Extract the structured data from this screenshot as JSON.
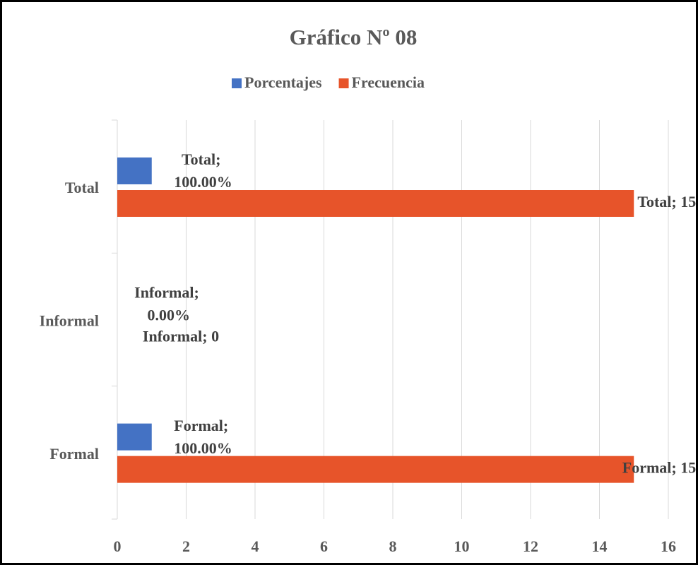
{
  "chart_data": {
    "type": "bar",
    "orientation": "horizontal",
    "title": "Gráfico Nº 08",
    "categories": [
      "Formal",
      "Informal",
      "Total"
    ],
    "series": [
      {
        "name": "Porcentajes",
        "color": "#4472c4",
        "values": [
          1,
          0,
          1
        ],
        "value_labels": [
          "Formal; 100.00%",
          "Informal; 0.00%",
          "Total; 100.00%"
        ]
      },
      {
        "name": "Frecuencia",
        "color": "#e7542a",
        "values": [
          15,
          0,
          15
        ],
        "value_labels": [
          "Formal; 15",
          "Informal; 0",
          "Total; 15"
        ]
      }
    ],
    "xlim": [
      0,
      16
    ],
    "xticks": [
      0,
      2,
      4,
      6,
      8,
      10,
      12,
      14,
      16
    ],
    "grid": true,
    "legend": "top"
  }
}
